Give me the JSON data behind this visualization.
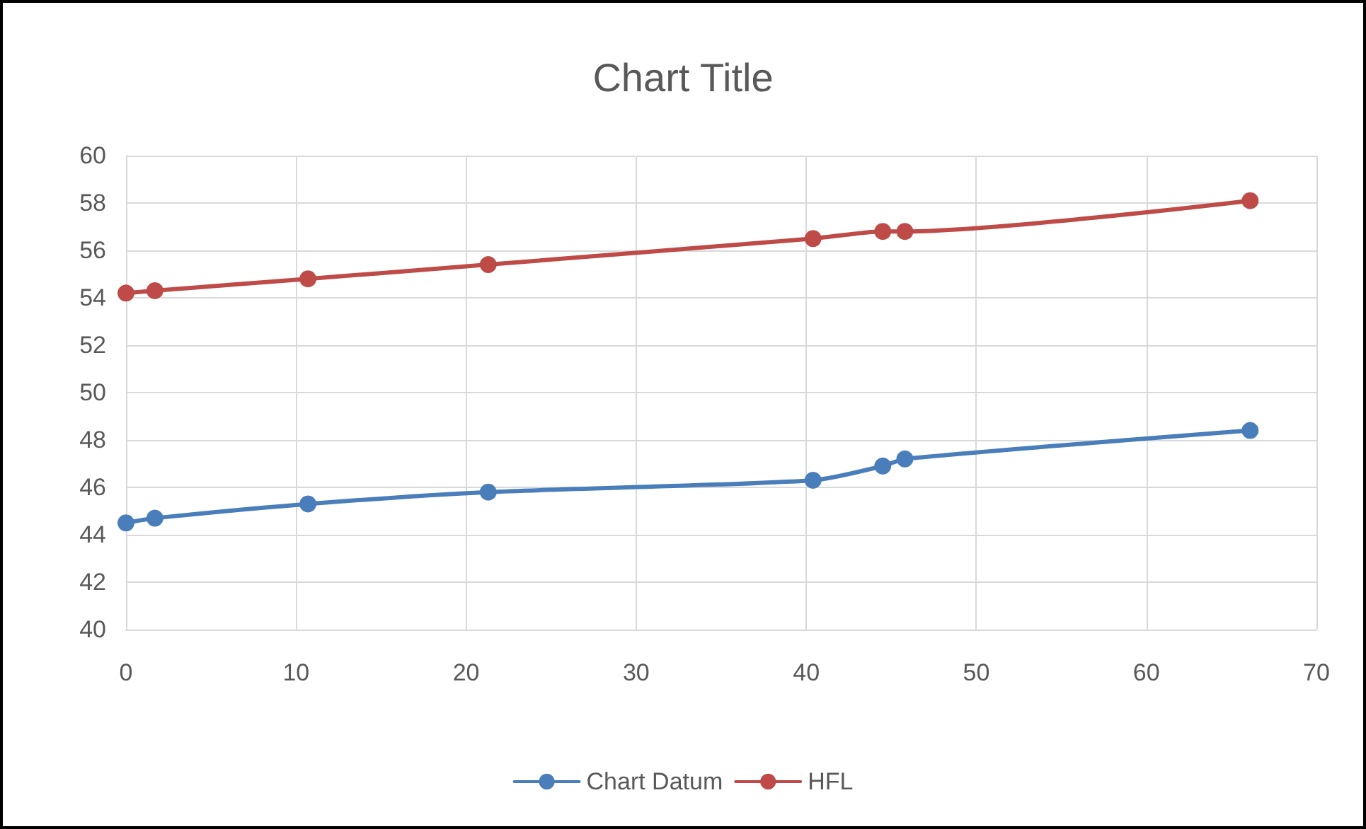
{
  "chart_data": {
    "type": "line",
    "title": "Chart Title",
    "series": [
      {
        "name": "Chart Datum",
        "color": "#4a7ebb",
        "x": [
          0,
          1.7,
          10.7,
          21.3,
          40.4,
          44.5,
          45.8,
          66.1
        ],
        "values": [
          44.5,
          44.7,
          45.3,
          45.8,
          46.3,
          46.9,
          47.2,
          48.4
        ]
      },
      {
        "name": "HFL",
        "color": "#be4b48",
        "x": [
          0,
          1.7,
          10.7,
          21.3,
          40.4,
          44.5,
          45.8,
          66.1
        ],
        "values": [
          54.2,
          54.3,
          54.8,
          55.4,
          56.5,
          56.8,
          56.8,
          58.1
        ]
      }
    ],
    "xlim": [
      0,
      70
    ],
    "xticks": [
      0,
      10,
      20,
      30,
      40,
      50,
      60,
      70
    ],
    "ylim": [
      40,
      60
    ],
    "yticks": [
      40,
      42,
      44,
      46,
      48,
      50,
      52,
      54,
      56,
      58,
      60
    ],
    "grid": true,
    "legend": "bottom",
    "marker": "circle",
    "line_style": "solid"
  }
}
